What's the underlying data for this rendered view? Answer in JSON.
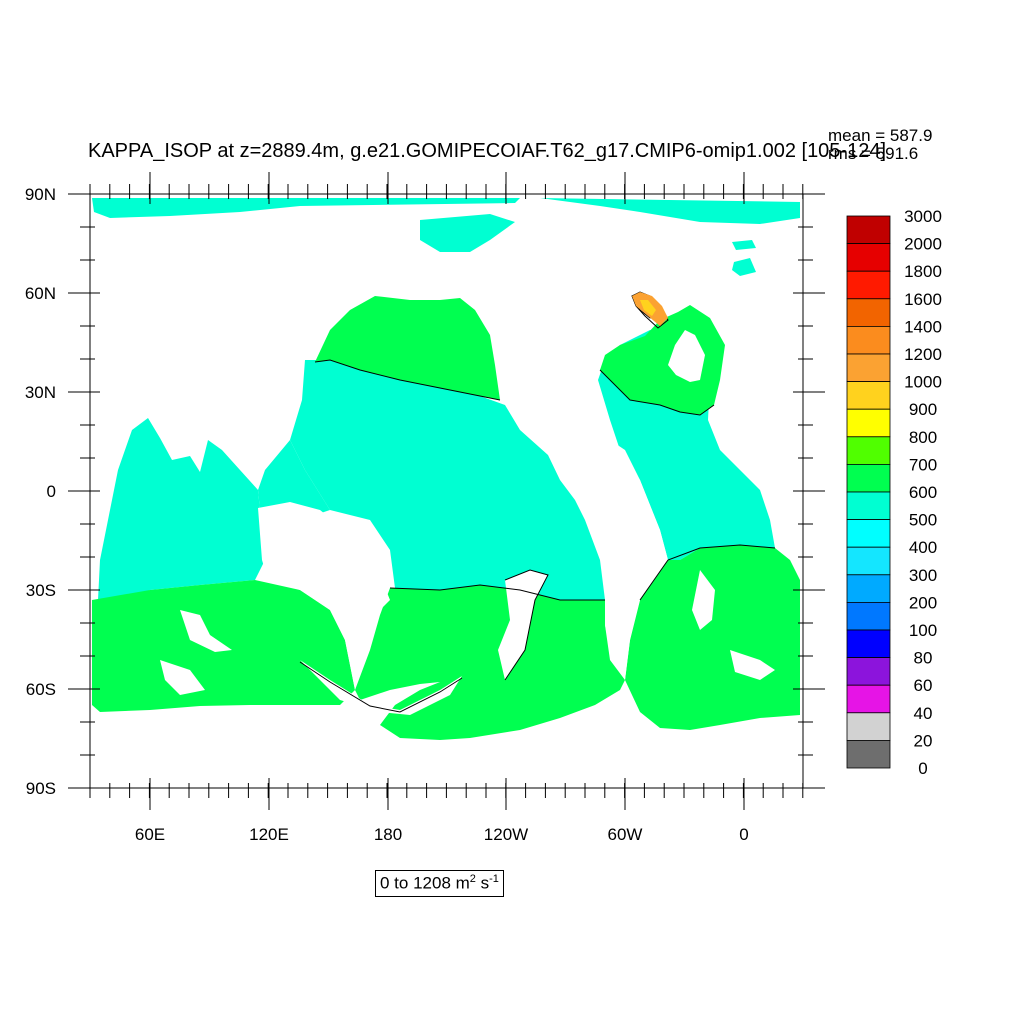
{
  "title": "KAPPA_ISOP at z=2889.4m, g.e21.GOMIPECOIAF.T62_g17.CMIP6-omip1.002 [105-124]",
  "stats": {
    "mean": "mean = 587.9",
    "rms": "rms = 591.6"
  },
  "range": {
    "prefix": "0 to 1208 m",
    "sup1": "2",
    "mid": " s",
    "sup2": "-1"
  },
  "axes": {
    "y_labels": [
      "90N",
      "60N",
      "30N",
      "0",
      "30S",
      "60S",
      "90S"
    ],
    "x_labels": [
      "60E",
      "120E",
      "180",
      "120W",
      "60W",
      "0"
    ]
  },
  "colorbar": {
    "labels": [
      "3000",
      "2000",
      "1800",
      "1600",
      "1400",
      "1200",
      "1000",
      "900",
      "800",
      "700",
      "600",
      "500",
      "400",
      "300",
      "200",
      "100",
      "80",
      "60",
      "40",
      "20",
      "0"
    ],
    "colors": [
      "#c00000",
      "#e60000",
      "#ff1a00",
      "#f26400",
      "#fb8c1e",
      "#fba232",
      "#ffd21e",
      "#ffff00",
      "#50ff00",
      "#00ff50",
      "#00ffd2",
      "#00ffff",
      "#14e6ff",
      "#00aaff",
      "#0078ff",
      "#0000ff",
      "#8c14dc",
      "#e614e6",
      "#d2d2d2",
      "#6e6e6e"
    ]
  },
  "map_colors": {
    "ocean_main": "#00ffd2",
    "ocean_south": "#00ff50",
    "land": "#ffffff",
    "contour": "#000000"
  }
}
